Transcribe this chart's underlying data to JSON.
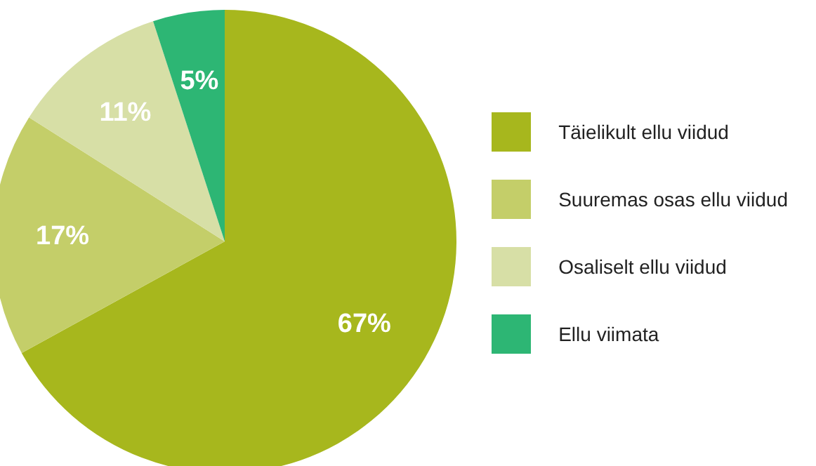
{
  "chart_data": {
    "type": "pie",
    "categories": [
      "Täielikult ellu viidud",
      "Suuremas osas ellu viidud",
      "Osaliselt ellu viidud",
      "Ellu viimata"
    ],
    "values": [
      67,
      17,
      11,
      5
    ],
    "colors": [
      "#a7b71d",
      "#c4ce69",
      "#d7dfa6",
      "#2db674"
    ],
    "value_labels": [
      "67%",
      "17%",
      "11%",
      "5%"
    ],
    "legend": "right"
  }
}
